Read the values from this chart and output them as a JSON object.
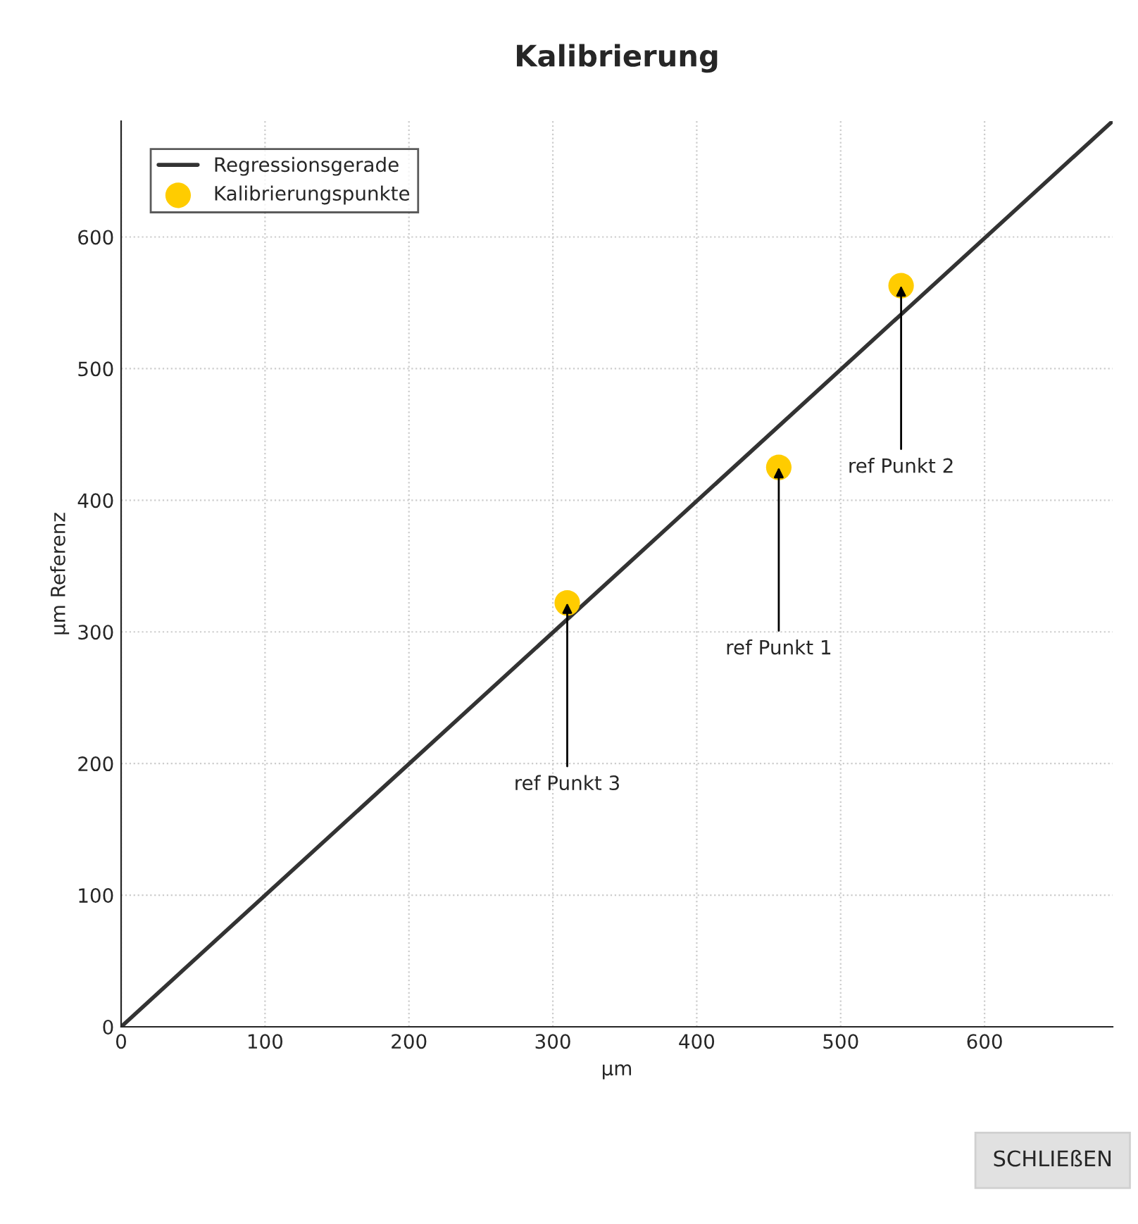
{
  "chart_data": {
    "type": "scatter",
    "title": "Kalibrierung",
    "xlabel": "µm",
    "ylabel": "µm Referenz",
    "xlim": [
      0,
      689
    ],
    "ylim": [
      0,
      688
    ],
    "xticks": [
      0,
      100,
      200,
      300,
      400,
      500,
      600
    ],
    "yticks": [
      0,
      100,
      200,
      300,
      400,
      500,
      600
    ],
    "grid": true,
    "legend": "top left",
    "series": [
      {
        "name": "Regressionsgerade",
        "type": "line",
        "color": "#333333",
        "x": [
          0,
          689
        ],
        "values": [
          0,
          688
        ],
        "marker": "none"
      },
      {
        "name": "Kalibrierungspunkte",
        "color": "#ffcc00",
        "x": [
          457,
          542,
          310
        ],
        "values": [
          425,
          563,
          322
        ],
        "marker": "circle"
      }
    ],
    "annotations": [
      {
        "text": "ref Punkt 1",
        "x": 457,
        "y": 425
      },
      {
        "text": "ref Punkt 2",
        "x": 542,
        "y": 563
      },
      {
        "text": "ref Punkt 3",
        "x": 310,
        "y": 322
      },
      "SCHLIEßEN"
    ]
  }
}
